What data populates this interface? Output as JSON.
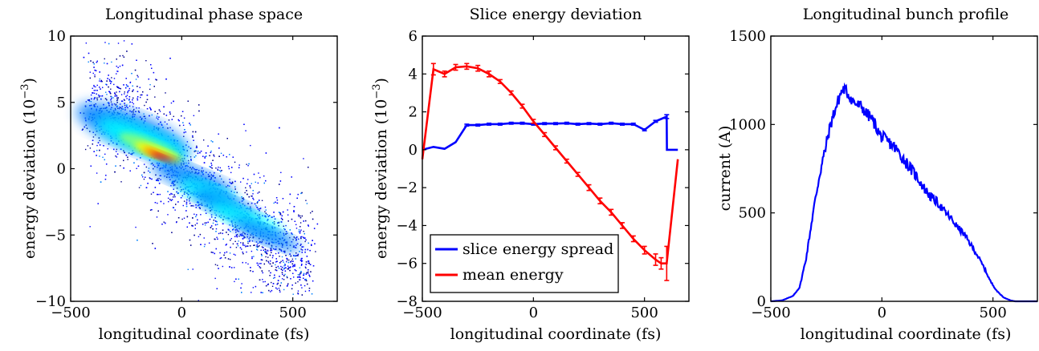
{
  "chart_data": [
    {
      "type": "heatmap",
      "title": "Longitudinal phase space",
      "xlabel": "longitudinal coordinate (fs)",
      "ylabel": "energy deviation (10^-3)",
      "ylabel_main": "energy deviation (10",
      "ylabel_exp": "−3",
      "ylabel_close": ")",
      "xlim": [
        -500,
        700
      ],
      "ylim": [
        -10,
        10
      ],
      "xticks": [
        -500,
        0,
        500
      ],
      "xtick_labels": [
        "−500",
        "0",
        "500"
      ],
      "yticks": [
        -10,
        -5,
        0,
        5,
        10
      ],
      "ytick_labels": [
        "−10",
        "−5",
        "0",
        "5",
        "10"
      ],
      "density_ridge": {
        "x": [
          -280,
          -200,
          -130,
          -90,
          0,
          120,
          250,
          350,
          450
        ],
        "y": [
          4.5,
          3.2,
          1.8,
          1.0,
          0.0,
          -1.8,
          -3.8,
          -5.0,
          -6.5
        ]
      },
      "colormap": [
        "#00008f",
        "#0000ff",
        "#0080ff",
        "#00ffff",
        "#80ff80",
        "#ffff00",
        "#ff8000",
        "#ff0000",
        "#800000"
      ]
    },
    {
      "type": "line",
      "title": "Slice energy deviation",
      "xlabel": "longitudinal coordinate (fs)",
      "ylabel": "energy deviation (10^-3)",
      "ylabel_main": "energy deviation (10",
      "ylabel_exp": "−3",
      "ylabel_close": ")",
      "xlim": [
        -500,
        700
      ],
      "ylim": [
        -8,
        6
      ],
      "xticks": [
        -500,
        0,
        500
      ],
      "xtick_labels": [
        "−500",
        "0",
        "500"
      ],
      "yticks": [
        -8,
        -6,
        -4,
        -2,
        0,
        2,
        4,
        6
      ],
      "ytick_labels": [
        "−8",
        "−6",
        "−4",
        "−2",
        "0",
        "2",
        "4",
        "6"
      ],
      "legend": "bottom-left",
      "series": [
        {
          "name": "slice energy spread",
          "color": "#0000ff",
          "x": [
            -500,
            -450,
            -400,
            -350,
            -300,
            -250,
            -200,
            -150,
            -100,
            -50,
            0,
            50,
            100,
            150,
            200,
            250,
            300,
            350,
            400,
            450,
            500,
            550,
            600,
            601,
            650
          ],
          "y": [
            0.0,
            0.15,
            0.05,
            0.4,
            1.3,
            1.3,
            1.35,
            1.35,
            1.4,
            1.4,
            1.35,
            1.38,
            1.38,
            1.4,
            1.35,
            1.38,
            1.35,
            1.4,
            1.35,
            1.35,
            1.05,
            1.5,
            1.75,
            0.0,
            0.0
          ],
          "err": [
            0,
            0,
            0,
            0,
            0.05,
            0.05,
            0.05,
            0.05,
            0.05,
            0.05,
            0.05,
            0.05,
            0.05,
            0.05,
            0.05,
            0.05,
            0.05,
            0.05,
            0.05,
            0.05,
            0.05,
            0.05,
            0.1,
            0,
            0
          ]
        },
        {
          "name": "mean energy",
          "color": "#ff0000",
          "x": [
            -500,
            -450,
            -400,
            -350,
            -300,
            -250,
            -200,
            -150,
            -100,
            -50,
            0,
            50,
            100,
            150,
            200,
            250,
            300,
            350,
            400,
            450,
            500,
            550,
            575,
            600,
            650
          ],
          "y": [
            -0.5,
            4.25,
            4.0,
            4.35,
            4.4,
            4.3,
            4.0,
            3.6,
            3.0,
            2.3,
            1.5,
            0.8,
            0.1,
            -0.6,
            -1.3,
            -2.0,
            -2.7,
            -3.3,
            -4.0,
            -4.7,
            -5.3,
            -5.8,
            -6.0,
            -6.0,
            -0.5
          ],
          "err": [
            0,
            0.3,
            0.15,
            0.15,
            0.15,
            0.15,
            0.15,
            0.1,
            0.1,
            0.1,
            0.1,
            0.1,
            0.1,
            0.1,
            0.1,
            0.15,
            0.15,
            0.15,
            0.15,
            0.15,
            0.2,
            0.3,
            0.3,
            0.9,
            0
          ]
        }
      ]
    },
    {
      "type": "line",
      "title": "Longitudinal bunch profile",
      "xlabel": "longitudinal coordinate (fs)",
      "ylabel": "current (A)",
      "xlim": [
        -500,
        700
      ],
      "ylim": [
        0,
        1500
      ],
      "xticks": [
        -500,
        0,
        500
      ],
      "xtick_labels": [
        "−500",
        "0",
        "500"
      ],
      "yticks": [
        0,
        500,
        1000,
        1500
      ],
      "ytick_labels": [
        "0",
        "500",
        "1000",
        "1500"
      ],
      "series": [
        {
          "color": "#0000ff",
          "x": [
            -500,
            -450,
            -400,
            -370,
            -340,
            -310,
            -280,
            -260,
            -240,
            -220,
            -200,
            -185,
            -170,
            -150,
            -130,
            -110,
            -90,
            -70,
            -50,
            -30,
            -10,
            10,
            30,
            50,
            70,
            100,
            130,
            160,
            190,
            220,
            250,
            280,
            310,
            340,
            370,
            400,
            430,
            460,
            490,
            520,
            550,
            580,
            600,
            650,
            700
          ],
          "y": [
            0,
            5,
            30,
            80,
            250,
            500,
            720,
            830,
            950,
            1050,
            1120,
            1180,
            1200,
            1170,
            1130,
            1110,
            1100,
            1060,
            1040,
            1000,
            940,
            920,
            900,
            880,
            850,
            800,
            750,
            700,
            640,
            590,
            560,
            510,
            470,
            420,
            380,
            320,
            260,
            190,
            110,
            55,
            20,
            5,
            0,
            0,
            0
          ]
        }
      ]
    }
  ]
}
